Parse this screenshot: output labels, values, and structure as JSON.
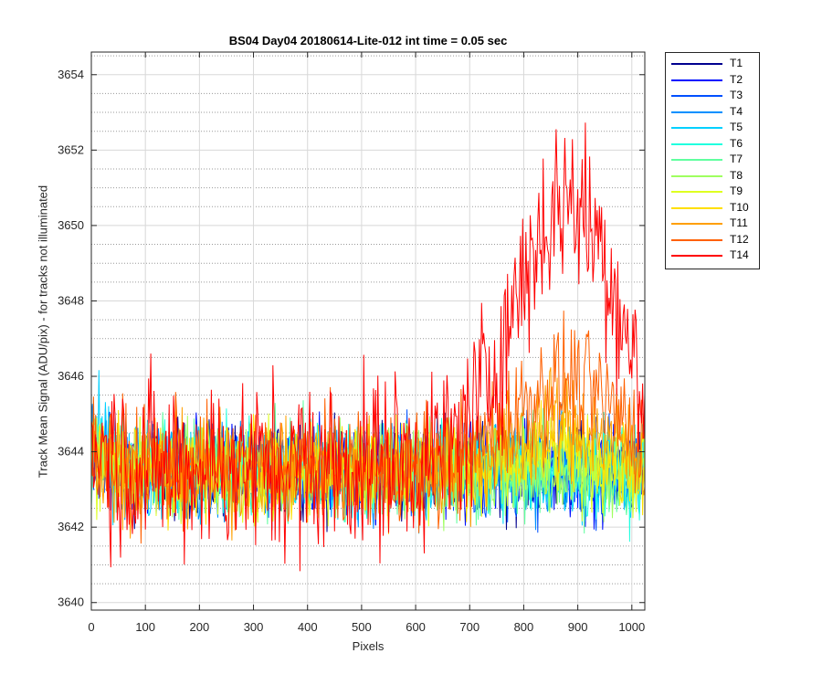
{
  "chart_data": {
    "type": "line",
    "title": "BS04 Day04 20180614-Lite-012 int time = 0.05 sec",
    "xlabel": "Pixels",
    "ylabel": "Track Mean Signal (ADU/pix) - for tracks not illuminated",
    "xlim": [
      0,
      1024
    ],
    "ylim": [
      3639.8,
      3654.6
    ],
    "x_ticks": [
      0,
      100,
      200,
      300,
      400,
      500,
      600,
      700,
      800,
      900,
      1000
    ],
    "y_ticks": [
      3640,
      3642,
      3644,
      3646,
      3648,
      3650,
      3652,
      3654
    ],
    "grid": "major and minor",
    "legend_position": "outside-right",
    "x": [
      0,
      50,
      100,
      150,
      200,
      250,
      300,
      350,
      400,
      450,
      500,
      550,
      600,
      650,
      700,
      750,
      800,
      850,
      880,
      900,
      950,
      1000,
      1024
    ],
    "series": [
      {
        "name": "T1",
        "color": "#00008f",
        "values": [
          3644.0,
          3643.6,
          3643.6,
          3643.5,
          3643.5,
          3643.5,
          3643.5,
          3643.5,
          3643.5,
          3643.5,
          3643.5,
          3643.5,
          3643.5,
          3643.5,
          3643.5,
          3643.5,
          3643.5,
          3643.5,
          3643.5,
          3643.5,
          3643.5,
          3643.5,
          3643.5
        ]
      },
      {
        "name": "T2",
        "color": "#0010ff",
        "values": [
          3644.0,
          3643.6,
          3643.5,
          3643.5,
          3643.5,
          3643.5,
          3643.5,
          3643.5,
          3643.5,
          3643.5,
          3643.5,
          3643.5,
          3643.5,
          3643.5,
          3643.5,
          3643.5,
          3643.5,
          3643.5,
          3643.5,
          3643.5,
          3643.5,
          3643.5,
          3643.5
        ]
      },
      {
        "name": "T3",
        "color": "#0050ff",
        "values": [
          3644.0,
          3643.6,
          3643.5,
          3643.5,
          3643.5,
          3643.5,
          3643.5,
          3643.5,
          3643.5,
          3643.5,
          3643.5,
          3643.5,
          3643.5,
          3643.5,
          3643.5,
          3643.5,
          3643.5,
          3643.5,
          3643.5,
          3643.5,
          3643.5,
          3643.5,
          3643.5
        ]
      },
      {
        "name": "T4",
        "color": "#0090ff",
        "values": [
          3644.0,
          3643.6,
          3643.5,
          3643.5,
          3643.5,
          3643.5,
          3643.5,
          3643.5,
          3643.5,
          3643.5,
          3643.5,
          3643.5,
          3643.5,
          3643.5,
          3643.5,
          3643.5,
          3643.5,
          3643.5,
          3643.5,
          3643.5,
          3643.5,
          3643.5,
          3643.5
        ]
      },
      {
        "name": "T5",
        "color": "#00d0ff",
        "values": [
          3644.5,
          3643.7,
          3643.5,
          3643.5,
          3643.5,
          3643.5,
          3643.5,
          3643.5,
          3643.5,
          3643.5,
          3643.5,
          3643.5,
          3643.5,
          3643.5,
          3643.5,
          3643.5,
          3643.5,
          3643.5,
          3643.5,
          3643.5,
          3643.5,
          3643.5,
          3643.5
        ]
      },
      {
        "name": "T6",
        "color": "#20ffdf",
        "values": [
          3644.0,
          3643.6,
          3643.5,
          3643.5,
          3643.5,
          3643.5,
          3643.5,
          3643.5,
          3643.5,
          3643.5,
          3643.5,
          3643.5,
          3643.5,
          3643.5,
          3643.5,
          3643.5,
          3643.5,
          3643.5,
          3643.5,
          3643.5,
          3643.5,
          3643.5,
          3643.5
        ]
      },
      {
        "name": "T7",
        "color": "#60ff9f",
        "values": [
          3644.0,
          3643.6,
          3643.5,
          3643.5,
          3643.5,
          3643.5,
          3643.5,
          3643.5,
          3643.5,
          3643.5,
          3643.5,
          3643.5,
          3643.5,
          3643.5,
          3643.5,
          3643.5,
          3643.5,
          3643.5,
          3643.5,
          3643.5,
          3643.5,
          3643.5,
          3643.5
        ]
      },
      {
        "name": "T8",
        "color": "#9fff60",
        "values": [
          3644.0,
          3643.6,
          3643.5,
          3643.5,
          3643.5,
          3643.5,
          3643.5,
          3643.5,
          3643.5,
          3643.5,
          3643.5,
          3643.5,
          3643.5,
          3643.5,
          3643.5,
          3643.5,
          3643.5,
          3643.5,
          3643.5,
          3643.5,
          3643.5,
          3643.5,
          3643.5
        ]
      },
      {
        "name": "T9",
        "color": "#dfff20",
        "values": [
          3644.0,
          3643.6,
          3643.5,
          3643.5,
          3643.5,
          3643.5,
          3643.5,
          3643.5,
          3643.5,
          3643.5,
          3643.5,
          3643.5,
          3643.5,
          3643.5,
          3643.5,
          3643.6,
          3643.7,
          3643.8,
          3643.8,
          3643.8,
          3643.7,
          3643.6,
          3643.6
        ]
      },
      {
        "name": "T10",
        "color": "#ffdf00",
        "values": [
          3644.0,
          3643.6,
          3643.5,
          3643.5,
          3643.5,
          3643.5,
          3643.5,
          3643.5,
          3643.5,
          3643.5,
          3643.5,
          3643.5,
          3643.5,
          3643.5,
          3643.6,
          3643.8,
          3644.0,
          3644.1,
          3644.2,
          3644.1,
          3643.9,
          3643.7,
          3643.6
        ]
      },
      {
        "name": "T11",
        "color": "#ff9f00",
        "values": [
          3644.0,
          3643.6,
          3643.5,
          3643.5,
          3643.5,
          3643.5,
          3643.5,
          3643.5,
          3643.5,
          3643.5,
          3643.5,
          3643.5,
          3643.5,
          3643.5,
          3643.7,
          3644.0,
          3644.4,
          3644.7,
          3644.8,
          3644.7,
          3644.4,
          3644.0,
          3643.9
        ]
      },
      {
        "name": "T12",
        "color": "#ff6000",
        "values": [
          3644.0,
          3643.7,
          3643.6,
          3643.6,
          3643.6,
          3643.6,
          3643.6,
          3643.6,
          3643.6,
          3643.6,
          3643.6,
          3643.6,
          3643.6,
          3643.7,
          3644.0,
          3644.6,
          3645.3,
          3645.8,
          3645.9,
          3645.8,
          3645.3,
          3644.7,
          3644.4
        ]
      },
      {
        "name": "T14",
        "color": "#ff0000",
        "values": [
          3644.3,
          3643.8,
          3643.6,
          3643.6,
          3643.6,
          3643.6,
          3643.6,
          3643.6,
          3643.6,
          3643.7,
          3643.7,
          3643.8,
          3643.8,
          3644.0,
          3644.8,
          3646.4,
          3648.7,
          3650.3,
          3650.8,
          3650.6,
          3649.3,
          3646.6,
          3645.0
        ]
      }
    ]
  }
}
